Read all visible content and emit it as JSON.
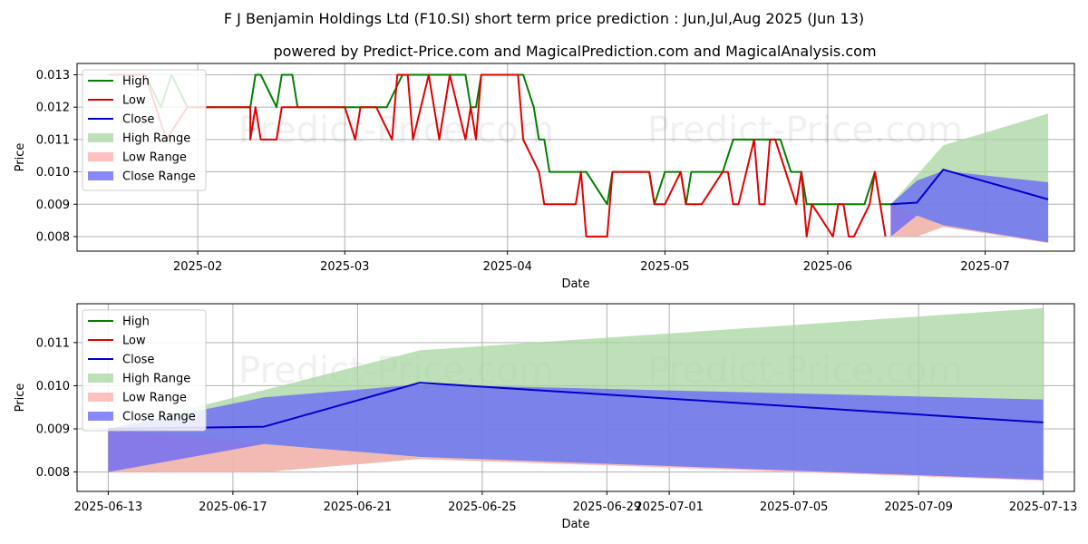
{
  "title_line1": "F J Benjamin Holdings Ltd (F10.SI) short term price prediction : Jun,Jul,Aug 2025 (Jun 13)",
  "title_line2": "powered by Predict-Price.com and MagicalPrediction.com and MagicalAnalysis.com",
  "watermark": "Predict-Price.com",
  "colors": {
    "high": "#008000",
    "low": "#e00000",
    "close": "#0000cc",
    "high_range": "#a8d5a0",
    "low_range": "#ffb0b0",
    "close_range": "#6a6af5",
    "grid": "#b0b0b0"
  },
  "chart_data": [
    {
      "type": "line",
      "name": "top-chart",
      "xlabel": "Date",
      "ylabel": "Price",
      "xlim": [
        "2025-01-09",
        "2025-07-18"
      ],
      "ylim": [
        0.00755,
        0.01335
      ],
      "yticks": [
        0.008,
        0.009,
        0.01,
        0.011,
        0.012,
        0.013
      ],
      "ytick_labels": [
        "0.008",
        "0.009",
        "0.010",
        "0.011",
        "0.012",
        "0.013"
      ],
      "xticks": [
        "2025-02-01",
        "2025-03-01",
        "2025-04-01",
        "2025-05-01",
        "2025-06-01",
        "2025-07-01"
      ],
      "xtick_labels": [
        "2025-02",
        "2025-03",
        "2025-04",
        "2025-05",
        "2025-06",
        "2025-07"
      ],
      "legend": [
        "High",
        "Low",
        "Close",
        "High Range",
        "Low Range",
        "Close Range"
      ],
      "legend_position": "top-left",
      "grid": true,
      "series": [
        {
          "name": "High",
          "points": [
            [
              "2025-01-15",
              0.013
            ],
            [
              "2025-01-22",
              0.013
            ],
            [
              "2025-01-25",
              0.012
            ],
            [
              "2025-01-27",
              0.013
            ],
            [
              "2025-01-30",
              0.012
            ],
            [
              "2025-02-11",
              0.012
            ],
            [
              "2025-02-12",
              0.013
            ],
            [
              "2025-02-13",
              0.013
            ],
            [
              "2025-02-16",
              0.012
            ],
            [
              "2025-02-17",
              0.013
            ],
            [
              "2025-02-19",
              0.013
            ],
            [
              "2025-02-20",
              0.012
            ],
            [
              "2025-03-06",
              0.012
            ],
            [
              "2025-03-09",
              0.012
            ],
            [
              "2025-03-12",
              0.013
            ],
            [
              "2025-03-24",
              0.013
            ],
            [
              "2025-03-25",
              0.012
            ],
            [
              "2025-03-26",
              0.012
            ],
            [
              "2025-03-27",
              0.013
            ],
            [
              "2025-04-04",
              0.013
            ],
            [
              "2025-04-06",
              0.012
            ],
            [
              "2025-04-07",
              0.011
            ],
            [
              "2025-04-08",
              0.011
            ],
            [
              "2025-04-09",
              0.01
            ],
            [
              "2025-04-16",
              0.01
            ],
            [
              "2025-04-20",
              0.009
            ],
            [
              "2025-04-21",
              0.01
            ],
            [
              "2025-04-28",
              0.01
            ],
            [
              "2025-04-29",
              0.009
            ],
            [
              "2025-05-01",
              0.01
            ],
            [
              "2025-05-04",
              0.01
            ],
            [
              "2025-05-05",
              0.009
            ],
            [
              "2025-05-06",
              0.01
            ],
            [
              "2025-05-12",
              0.01
            ],
            [
              "2025-05-14",
              0.011
            ],
            [
              "2025-05-23",
              0.011
            ],
            [
              "2025-05-25",
              0.01
            ],
            [
              "2025-05-27",
              0.01
            ],
            [
              "2025-05-28",
              0.009
            ],
            [
              "2025-06-08",
              0.009
            ],
            [
              "2025-06-10",
              0.01
            ],
            [
              "2025-06-11",
              0.009
            ],
            [
              "2025-06-13",
              0.009
            ]
          ]
        },
        {
          "name": "Low",
          "points": [
            [
              "2025-01-15",
              0.013
            ],
            [
              "2025-01-22",
              0.013
            ],
            [
              "2025-01-26",
              0.011
            ],
            [
              "2025-01-30",
              0.012
            ],
            [
              "2025-02-11",
              0.012
            ],
            [
              "2025-02-11",
              0.011
            ],
            [
              "2025-02-12",
              0.012
            ],
            [
              "2025-02-13",
              0.011
            ],
            [
              "2025-02-16",
              0.011
            ],
            [
              "2025-02-17",
              0.012
            ],
            [
              "2025-03-01",
              0.012
            ],
            [
              "2025-03-03",
              0.011
            ],
            [
              "2025-03-04",
              0.012
            ],
            [
              "2025-03-07",
              0.012
            ],
            [
              "2025-03-10",
              0.011
            ],
            [
              "2025-03-11",
              0.013
            ],
            [
              "2025-03-13",
              0.013
            ],
            [
              "2025-03-14",
              0.011
            ],
            [
              "2025-03-17",
              0.013
            ],
            [
              "2025-03-19",
              0.011
            ],
            [
              "2025-03-21",
              0.013
            ],
            [
              "2025-03-24",
              0.011
            ],
            [
              "2025-03-25",
              0.012
            ],
            [
              "2025-03-26",
              0.011
            ],
            [
              "2025-03-27",
              0.013
            ],
            [
              "2025-04-03",
              0.013
            ],
            [
              "2025-04-04",
              0.011
            ],
            [
              "2025-04-07",
              0.01
            ],
            [
              "2025-04-08",
              0.009
            ],
            [
              "2025-04-14",
              0.009
            ],
            [
              "2025-04-15",
              0.01
            ],
            [
              "2025-04-16",
              0.008
            ],
            [
              "2025-04-20",
              0.008
            ],
            [
              "2025-04-21",
              0.01
            ],
            [
              "2025-04-28",
              0.01
            ],
            [
              "2025-04-29",
              0.009
            ],
            [
              "2025-05-01",
              0.009
            ],
            [
              "2025-05-04",
              0.01
            ],
            [
              "2025-05-05",
              0.009
            ],
            [
              "2025-05-08",
              0.009
            ],
            [
              "2025-05-12",
              0.01
            ],
            [
              "2025-05-13",
              0.01
            ],
            [
              "2025-05-14",
              0.009
            ],
            [
              "2025-05-15",
              0.009
            ],
            [
              "2025-05-18",
              0.011
            ],
            [
              "2025-05-19",
              0.009
            ],
            [
              "2025-05-20",
              0.009
            ],
            [
              "2025-05-21",
              0.011
            ],
            [
              "2025-05-22",
              0.011
            ],
            [
              "2025-05-26",
              0.009
            ],
            [
              "2025-05-27",
              0.01
            ],
            [
              "2025-05-28",
              0.008
            ],
            [
              "2025-05-29",
              0.009
            ],
            [
              "2025-06-02",
              0.008
            ],
            [
              "2025-06-03",
              0.009
            ],
            [
              "2025-06-04",
              0.009
            ],
            [
              "2025-06-05",
              0.008
            ],
            [
              "2025-06-06",
              0.008
            ],
            [
              "2025-06-09",
              0.009
            ],
            [
              "2025-06-10",
              0.01
            ],
            [
              "2025-06-12",
              0.008
            ]
          ]
        },
        {
          "name": "Close",
          "points": [
            [
              "2025-06-13",
              0.009
            ],
            [
              "2025-06-18",
              0.00905
            ],
            [
              "2025-06-23",
              0.01007
            ],
            [
              "2025-07-13",
              0.00915
            ]
          ]
        }
      ],
      "bands": [
        {
          "name": "High Range",
          "points": [
            [
              "2025-06-13",
              0.009,
              0.008
            ],
            [
              "2025-06-18",
              0.0099,
              0.008
            ],
            [
              "2025-06-23",
              0.01082,
              0.0083
            ],
            [
              "2025-07-13",
              0.0118,
              0.00785
            ]
          ]
        },
        {
          "name": "Low Range",
          "points": [
            [
              "2025-06-13",
              0.009,
              0.008
            ],
            [
              "2025-06-18",
              0.00865,
              0.008
            ],
            [
              "2025-06-23",
              0.00835,
              0.0083
            ],
            [
              "2025-07-13",
              0.00785,
              0.0078
            ]
          ]
        },
        {
          "name": "Close Range",
          "points": [
            [
              "2025-06-13",
              0.009,
              0.008
            ],
            [
              "2025-06-18",
              0.00973,
              0.00865
            ],
            [
              "2025-06-23",
              0.01003,
              0.00835
            ],
            [
              "2025-07-13",
              0.00968,
              0.00782
            ]
          ]
        }
      ]
    },
    {
      "type": "line",
      "name": "bottom-chart",
      "xlabel": "Date",
      "ylabel": "Price",
      "xlim": [
        "2025-06-12",
        "2025-07-14"
      ],
      "ylim": [
        0.00755,
        0.0119
      ],
      "yticks": [
        0.008,
        0.009,
        0.01,
        0.011
      ],
      "ytick_labels": [
        "0.008",
        "0.009",
        "0.010",
        "0.011"
      ],
      "xticks": [
        "2025-06-13",
        "2025-06-17",
        "2025-06-21",
        "2025-06-25",
        "2025-06-29",
        "2025-07-01",
        "2025-07-05",
        "2025-07-09",
        "2025-07-13"
      ],
      "xtick_labels": [
        "2025-06-13",
        "2025-06-17",
        "2025-06-21",
        "2025-06-25",
        "2025-06-29",
        "2025-07-01",
        "2025-07-05",
        "2025-07-09",
        "2025-07-13"
      ],
      "legend": [
        "High",
        "Low",
        "Close",
        "High Range",
        "Low Range",
        "Close Range"
      ],
      "legend_position": "top-left",
      "grid": true,
      "series": [
        {
          "name": "Close",
          "points": [
            [
              "2025-06-13",
              0.009
            ],
            [
              "2025-06-18",
              0.00905
            ],
            [
              "2025-06-23",
              0.01007
            ],
            [
              "2025-07-13",
              0.00915
            ]
          ]
        }
      ],
      "bands": [
        {
          "name": "High Range",
          "points": [
            [
              "2025-06-13",
              0.009,
              0.008
            ],
            [
              "2025-06-18",
              0.0099,
              0.008
            ],
            [
              "2025-06-23",
              0.01082,
              0.0083
            ],
            [
              "2025-07-13",
              0.0118,
              0.00785
            ]
          ]
        },
        {
          "name": "Low Range",
          "points": [
            [
              "2025-06-13",
              0.009,
              0.008
            ],
            [
              "2025-06-18",
              0.00865,
              0.008
            ],
            [
              "2025-06-23",
              0.00835,
              0.0083
            ],
            [
              "2025-07-13",
              0.00785,
              0.0078
            ]
          ]
        },
        {
          "name": "Close Range",
          "points": [
            [
              "2025-06-13",
              0.009,
              0.008
            ],
            [
              "2025-06-18",
              0.00973,
              0.00865
            ],
            [
              "2025-06-23",
              0.01003,
              0.00835
            ],
            [
              "2025-07-13",
              0.00968,
              0.00782
            ]
          ]
        }
      ]
    }
  ]
}
